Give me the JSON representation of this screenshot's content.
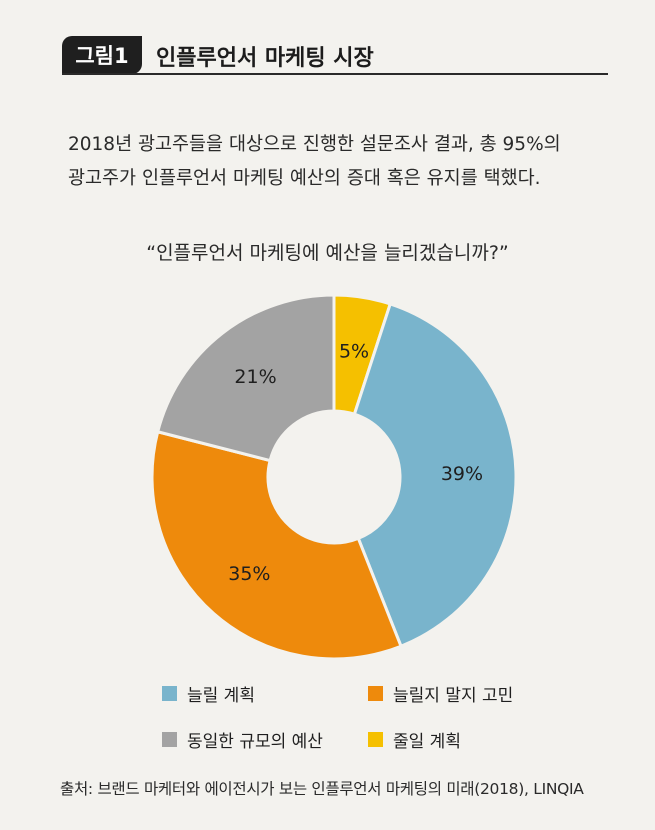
{
  "header": {
    "badge": "그림1",
    "title": "인플루언서 마케팅 시장"
  },
  "intro": {
    "line1": "2018년 광고주들을 대상으로 진행한 설문조사 결과, 총 95%의",
    "line2": "광고주가 인플루언서 마케팅 예산의 증대 혹은 유지를 택했다."
  },
  "source": "출처: 브랜드 마케터와 에이전시가 보는 인플루언서 마케팅의 미래(2018), LINQIA",
  "chart_data": {
    "type": "pie",
    "title": "“인플루언서 마케팅에 예산을 늘리겠습니까?”",
    "donut": true,
    "start": "12 o'clock, clockwise from the yellow slice",
    "legend_position": "bottom",
    "slices": [
      {
        "label": "줄일 계획",
        "value": 5,
        "value_label": "5%",
        "color": "#f5c000"
      },
      {
        "label": "늘릴 계획",
        "value": 39,
        "value_label": "39%",
        "color": "#79b4cc"
      },
      {
        "label": "늘릴지 말지 고민",
        "value": 35,
        "value_label": "35%",
        "color": "#ee8a0c"
      },
      {
        "label": "동일한 규모의 예산",
        "value": 21,
        "value_label": "21%",
        "color": "#a3a3a3"
      }
    ],
    "legend_order": [
      "늘릴 계획",
      "늘릴지 말지 고민",
      "동일한 규모의 예산",
      "줄일 계획"
    ]
  }
}
